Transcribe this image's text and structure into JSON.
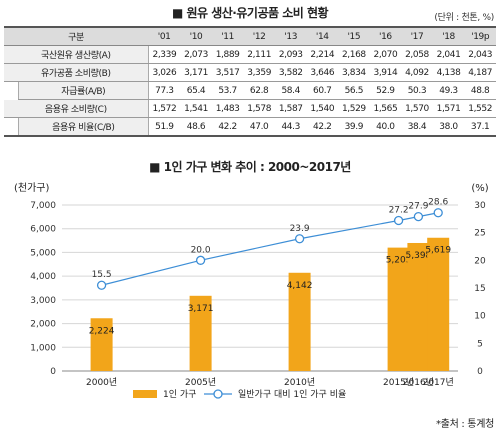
{
  "table": {
    "title": "■ 원유 생산·유기공품 소비 현황",
    "unit": "(단위 : 천톤, %)",
    "corner": "구분",
    "years": [
      "'01",
      "'10",
      "'11",
      "'12",
      "'13",
      "'14",
      "'15",
      "'16",
      "'17",
      "'18",
      "'19p"
    ],
    "rows": [
      {
        "label": "국산원유 생산량(A)",
        "indent": false,
        "values": [
          "2,339",
          "2,073",
          "1,889",
          "2,111",
          "2,093",
          "2,214",
          "2,168",
          "2,070",
          "2,058",
          "2,041",
          "2,043"
        ]
      },
      {
        "label": "유가공품 소비량(B)",
        "indent": false,
        "values": [
          "3,026",
          "3,171",
          "3,517",
          "3,359",
          "3,582",
          "3,646",
          "3,834",
          "3,914",
          "4,092",
          "4,138",
          "4,187"
        ]
      },
      {
        "label": "자급률(A/B)",
        "indent": true,
        "values": [
          "77.3",
          "65.4",
          "53.7",
          "62.8",
          "58.4",
          "60.7",
          "56.5",
          "52.9",
          "50.3",
          "49.3",
          "48.8"
        ]
      },
      {
        "label": "음용유 소비량(C)",
        "indent": false,
        "values": [
          "1,572",
          "1,541",
          "1,483",
          "1,578",
          "1,587",
          "1,540",
          "1,529",
          "1,565",
          "1,570",
          "1,571",
          "1,552"
        ]
      },
      {
        "label": "음용유 비율(C/B)",
        "indent": true,
        "values": [
          "51.9",
          "48.6",
          "42.2",
          "47.0",
          "44.3",
          "42.2",
          "39.9",
          "40.0",
          "38.4",
          "38.0",
          "37.1"
        ]
      }
    ]
  },
  "chart_data": {
    "type": "bar",
    "title": "■ 1인 가구 변화 추이 : 2000~2017년",
    "categories": [
      "2000년",
      "2005년",
      "2010년",
      "2015년",
      "2016년",
      "2017년"
    ],
    "x": [
      2000,
      2005,
      2010,
      2015,
      2016,
      2017
    ],
    "x_range": [
      1998,
      2018
    ],
    "left_axis": {
      "label": "(천가구)",
      "min": 0,
      "max": 7000,
      "ticks": [
        "0",
        "1,000",
        "2,000",
        "3,000",
        "4,000",
        "5,000",
        "6,000",
        "7,000"
      ]
    },
    "right_axis": {
      "label": "(%)",
      "min": 0,
      "max": 30,
      "ticks": [
        "0",
        "5",
        "10",
        "15",
        "20",
        "25",
        "30"
      ]
    },
    "grid": true,
    "series": [
      {
        "name": "1인 가구",
        "type": "bar",
        "axis": "left",
        "color": "#f2a51a",
        "values": [
          2224,
          3171,
          4142,
          5203,
          5398,
          5619
        ],
        "labels": [
          "2,224",
          "3,171",
          "4,142",
          "5,203",
          "5,398",
          "5,619"
        ]
      },
      {
        "name": "일반가구 대비 1인 가구 비율",
        "type": "line",
        "axis": "right",
        "color": "#3d8ed6",
        "values": [
          15.5,
          20.0,
          23.9,
          27.2,
          27.9,
          28.6
        ],
        "labels": [
          "15.5",
          "20.0",
          "23.9",
          "27.2",
          "27.9",
          "28.6"
        ]
      }
    ],
    "legend_position": "bottom"
  },
  "source": "*출처 : 통계청"
}
